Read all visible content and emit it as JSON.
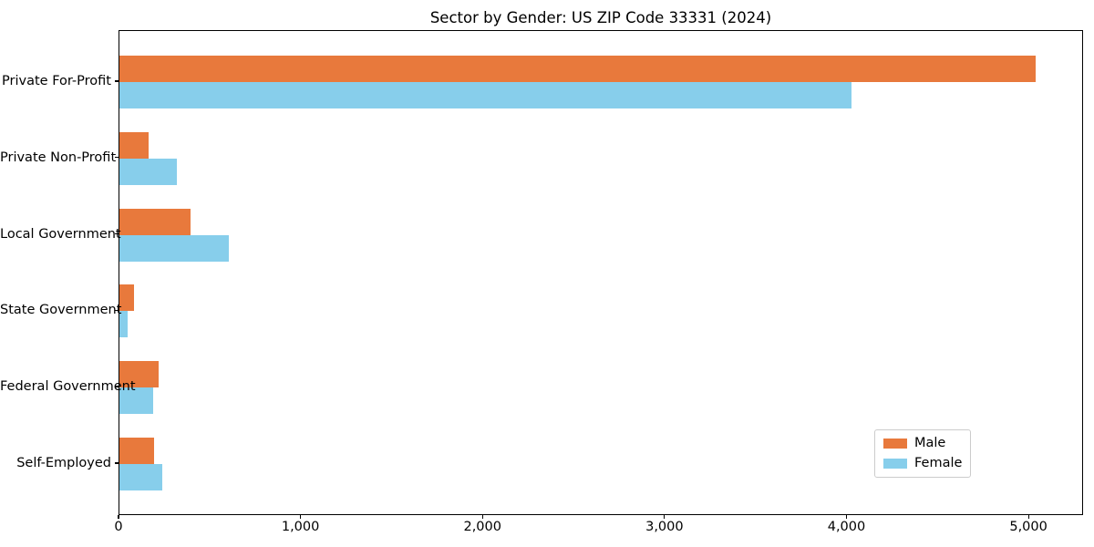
{
  "chart_data": {
    "type": "bar",
    "orientation": "horizontal",
    "title": "Sector by Gender: US ZIP Code 33331 (2024)",
    "xlabel": "",
    "ylabel": "",
    "categories": [
      "Private For-Profit",
      "Private Non-Profit",
      "Local Government",
      "State Government",
      "Federal Government",
      "Self-Employed"
    ],
    "series": [
      {
        "name": "Male",
        "color": "#e8793c",
        "values": [
          5045,
          160,
          390,
          80,
          215,
          190
        ]
      },
      {
        "name": "Female",
        "color": "#87ceeb",
        "values": [
          4030,
          315,
          600,
          45,
          185,
          235
        ]
      }
    ],
    "xlim": [
      0,
      5300
    ],
    "x_ticks": [
      {
        "value": 0,
        "label": "0"
      },
      {
        "value": 1000,
        "label": "1,000"
      },
      {
        "value": 2000,
        "label": "2,000"
      },
      {
        "value": 3000,
        "label": "3,000"
      },
      {
        "value": 4000,
        "label": "4,000"
      },
      {
        "value": 5000,
        "label": "5,000"
      }
    ],
    "grid": false,
    "legend_position": "lower right",
    "legend_entries": [
      "Male",
      "Female"
    ],
    "colors": {
      "axis": "#000000",
      "legend_border": "#cccccc",
      "background": "#ffffff"
    }
  }
}
